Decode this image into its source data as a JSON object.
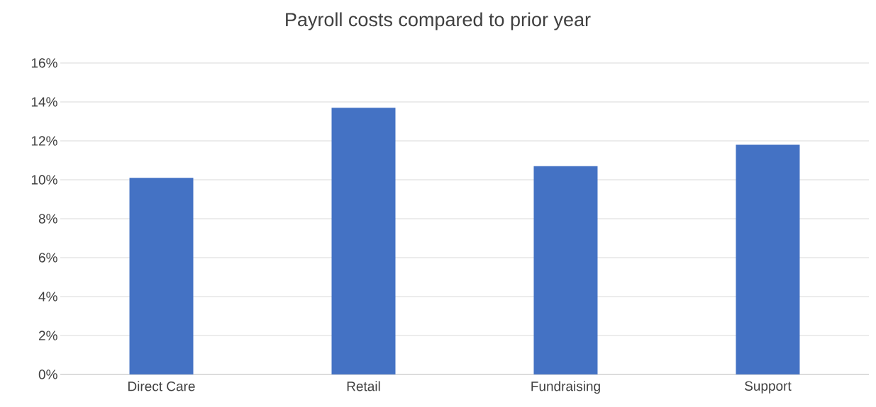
{
  "chart_data": {
    "type": "bar",
    "title": "Payroll costs compared to prior year",
    "categories": [
      "Direct Care",
      "Retail",
      "Fundraising",
      "Support"
    ],
    "values": [
      10.1,
      13.7,
      10.7,
      11.8
    ],
    "color": "#4472c4",
    "ylim": [
      0,
      16
    ],
    "yticks": [
      {
        "value": 0,
        "label": "0%"
      },
      {
        "value": 2,
        "label": "2%"
      },
      {
        "value": 4,
        "label": "4%"
      },
      {
        "value": 6,
        "label": "6%"
      },
      {
        "value": 8,
        "label": "8%"
      },
      {
        "value": 10,
        "label": "10%"
      },
      {
        "value": 12,
        "label": "12%"
      },
      {
        "value": 14,
        "label": "14%"
      },
      {
        "value": 16,
        "label": "16%"
      }
    ],
    "grid": "y"
  }
}
